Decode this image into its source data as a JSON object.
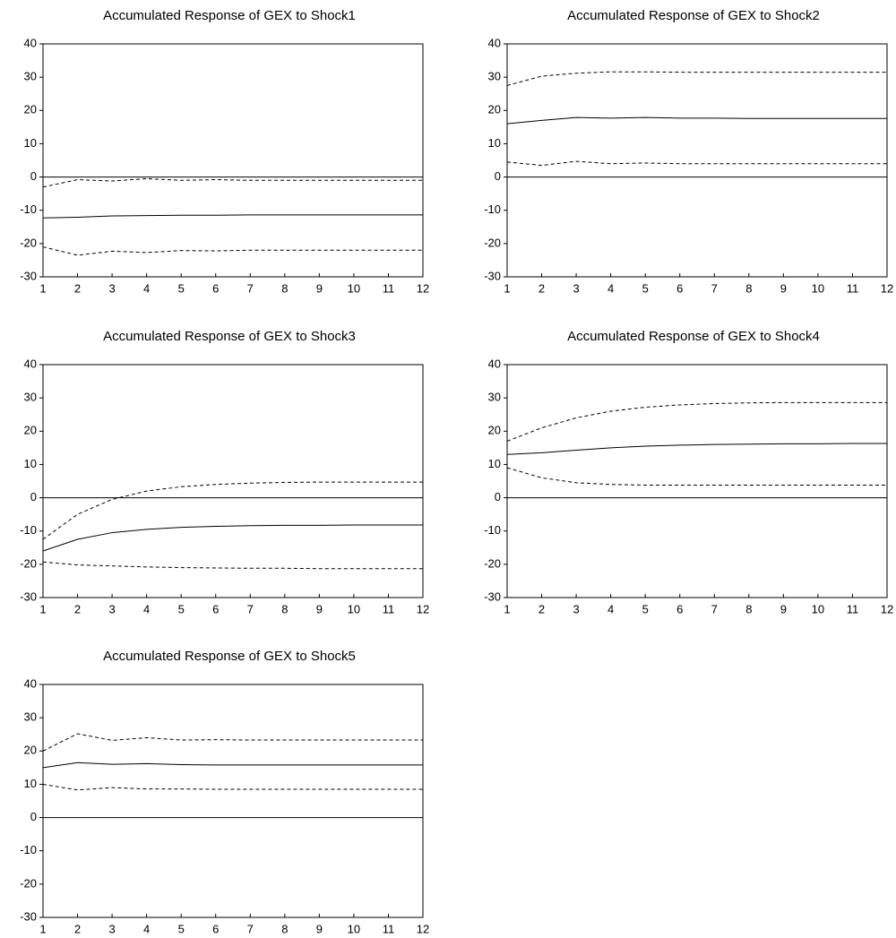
{
  "chart_data": [
    {
      "type": "line",
      "title": "Accumulated Response of GEX to Shock1",
      "x": [
        1,
        2,
        3,
        4,
        5,
        6,
        7,
        8,
        9,
        10,
        11,
        12
      ],
      "xlim": [
        1,
        12
      ],
      "xticks": [
        1,
        2,
        3,
        4,
        5,
        6,
        7,
        8,
        9,
        10,
        11,
        12
      ],
      "ylim": [
        -30,
        40
      ],
      "yticks": [
        -30,
        -20,
        -10,
        0,
        10,
        20,
        30,
        40
      ],
      "hline": 0,
      "series": [
        {
          "style": "solid",
          "color": "#000000",
          "values": [
            -12.3,
            -12.1,
            -11.7,
            -11.6,
            -11.5,
            -11.5,
            -11.4,
            -11.4,
            -11.4,
            -11.4,
            -11.4,
            -11.4
          ]
        },
        {
          "style": "dashed",
          "color": "#000000",
          "values": [
            -3,
            -0.8,
            -1.2,
            -0.5,
            -1,
            -0.8,
            -1,
            -1,
            -1,
            -1,
            -1,
            -1
          ]
        },
        {
          "style": "dashed",
          "color": "#000000",
          "values": [
            -21,
            -23.5,
            -22.3,
            -22.7,
            -22.1,
            -22.2,
            -22,
            -22,
            -22,
            -22,
            -22,
            -22
          ]
        }
      ]
    },
    {
      "type": "line",
      "title": "Accumulated Response of GEX to Shock2",
      "x": [
        1,
        2,
        3,
        4,
        5,
        6,
        7,
        8,
        9,
        10,
        11,
        12
      ],
      "xlim": [
        1,
        12
      ],
      "xticks": [
        1,
        2,
        3,
        4,
        5,
        6,
        7,
        8,
        9,
        10,
        11,
        12
      ],
      "ylim": [
        -30,
        40
      ],
      "yticks": [
        -30,
        -20,
        -10,
        0,
        10,
        20,
        30,
        40
      ],
      "hline": 0,
      "series": [
        {
          "style": "solid",
          "color": "#000000",
          "values": [
            16,
            17,
            17.9,
            17.7,
            17.9,
            17.7,
            17.7,
            17.6,
            17.6,
            17.6,
            17.6,
            17.6
          ]
        },
        {
          "style": "dashed",
          "color": "#000000",
          "values": [
            27.5,
            30.3,
            31.2,
            31.6,
            31.6,
            31.5,
            31.5,
            31.5,
            31.5,
            31.5,
            31.5,
            31.5
          ]
        },
        {
          "style": "dashed",
          "color": "#000000",
          "values": [
            4.5,
            3.5,
            4.7,
            4,
            4.2,
            4,
            4,
            4,
            4,
            4,
            4,
            4
          ]
        }
      ]
    },
    {
      "type": "line",
      "title": "Accumulated Response of GEX to Shock3",
      "x": [
        1,
        2,
        3,
        4,
        5,
        6,
        7,
        8,
        9,
        10,
        11,
        12
      ],
      "xlim": [
        1,
        12
      ],
      "xticks": [
        1,
        2,
        3,
        4,
        5,
        6,
        7,
        8,
        9,
        10,
        11,
        12
      ],
      "ylim": [
        -30,
        40
      ],
      "yticks": [
        -30,
        -20,
        -10,
        0,
        10,
        20,
        30,
        40
      ],
      "hline": 0,
      "series": [
        {
          "style": "solid",
          "color": "#000000",
          "values": [
            -16,
            -12.5,
            -10.5,
            -9.5,
            -8.9,
            -8.6,
            -8.4,
            -8.3,
            -8.3,
            -8.2,
            -8.2,
            -8.2
          ]
        },
        {
          "style": "dashed",
          "color": "#000000",
          "values": [
            -12.5,
            -5,
            -0.5,
            2,
            3.3,
            4,
            4.4,
            4.6,
            4.7,
            4.7,
            4.7,
            4.7
          ]
        },
        {
          "style": "dashed",
          "color": "#000000",
          "values": [
            -19.3,
            -20.2,
            -20.5,
            -20.8,
            -21,
            -21.1,
            -21.2,
            -21.2,
            -21.3,
            -21.3,
            -21.3,
            -21.3
          ]
        }
      ]
    },
    {
      "type": "line",
      "title": "Accumulated Response of GEX to Shock4",
      "x": [
        1,
        2,
        3,
        4,
        5,
        6,
        7,
        8,
        9,
        10,
        11,
        12
      ],
      "xlim": [
        1,
        12
      ],
      "xticks": [
        1,
        2,
        3,
        4,
        5,
        6,
        7,
        8,
        9,
        10,
        11,
        12
      ],
      "ylim": [
        -30,
        40
      ],
      "yticks": [
        -30,
        -20,
        -10,
        0,
        10,
        20,
        30,
        40
      ],
      "hline": 0,
      "series": [
        {
          "style": "solid",
          "color": "#000000",
          "values": [
            13,
            13.5,
            14.3,
            15,
            15.5,
            15.8,
            16,
            16.1,
            16.2,
            16.2,
            16.3,
            16.3
          ]
        },
        {
          "style": "dashed",
          "color": "#000000",
          "values": [
            17,
            21,
            24,
            26,
            27.2,
            27.9,
            28.3,
            28.5,
            28.6,
            28.6,
            28.6,
            28.6
          ]
        },
        {
          "style": "dashed",
          "color": "#000000",
          "values": [
            9,
            6,
            4.5,
            4,
            3.8,
            3.8,
            3.8,
            3.8,
            3.8,
            3.8,
            3.8,
            3.8
          ]
        }
      ]
    },
    {
      "type": "line",
      "title": "Accumulated Response of GEX to Shock5",
      "x": [
        1,
        2,
        3,
        4,
        5,
        6,
        7,
        8,
        9,
        10,
        11,
        12
      ],
      "xlim": [
        1,
        12
      ],
      "xticks": [
        1,
        2,
        3,
        4,
        5,
        6,
        7,
        8,
        9,
        10,
        11,
        12
      ],
      "ylim": [
        -30,
        40
      ],
      "yticks": [
        -30,
        -20,
        -10,
        0,
        10,
        20,
        30,
        40
      ],
      "hline": 0,
      "series": [
        {
          "style": "solid",
          "color": "#000000",
          "values": [
            15,
            16.5,
            16,
            16.2,
            15.9,
            15.8,
            15.8,
            15.8,
            15.8,
            15.8,
            15.8,
            15.8
          ]
        },
        {
          "style": "dashed",
          "color": "#000000",
          "values": [
            20,
            25.2,
            23.2,
            24,
            23.3,
            23.4,
            23.3,
            23.3,
            23.3,
            23.3,
            23.3,
            23.3
          ]
        },
        {
          "style": "dashed",
          "color": "#000000",
          "values": [
            10,
            8.3,
            9,
            8.6,
            8.6,
            8.5,
            8.5,
            8.5,
            8.5,
            8.5,
            8.5,
            8.5
          ]
        }
      ]
    }
  ]
}
